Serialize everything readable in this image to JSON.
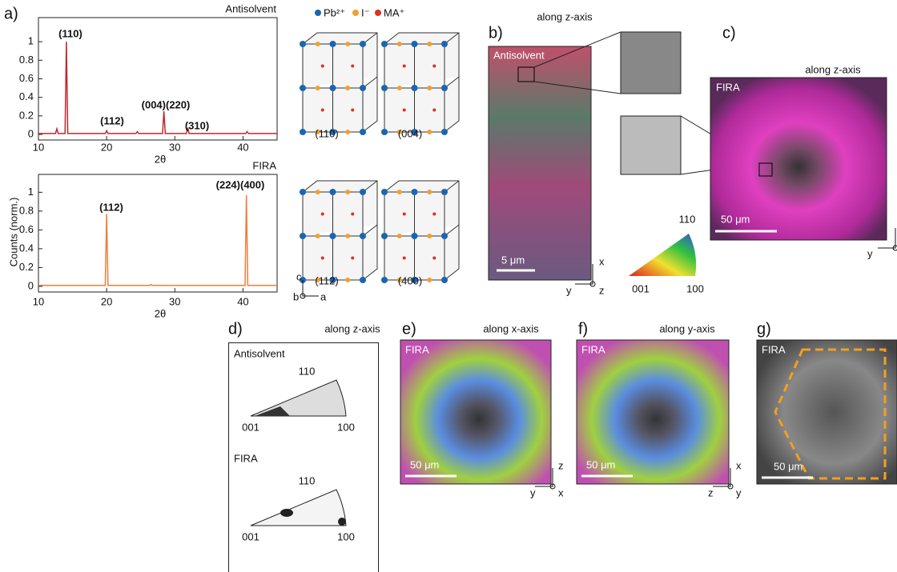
{
  "chart_data": [
    {
      "type": "line",
      "subtitle": "Antisolvent",
      "ylabel": "Counts (norm.)",
      "xlabel": "2θ",
      "x": [
        10,
        12.5,
        12.7,
        12.9,
        13.9,
        14.1,
        14.3,
        19.8,
        20,
        20.2,
        24.3,
        24.5,
        24.7,
        28.2,
        28.4,
        28.6,
        31.7,
        31.9,
        32.1,
        40.4,
        40.6,
        40.8,
        45
      ],
      "series": [
        {
          "color": "#c0282d",
          "values": [
            0.01,
            0.01,
            0.06,
            0.01,
            0.01,
            1.0,
            0.01,
            0.01,
            0.04,
            0.01,
            0.01,
            0.03,
            0.01,
            0.01,
            0.25,
            0.01,
            0.01,
            0.07,
            0.01,
            0.01,
            0.03,
            0.01,
            0.01
          ]
        }
      ],
      "annotations": [
        "(110)",
        "(112)",
        "(004)(220)",
        "(310)"
      ],
      "xlim": [
        10,
        45
      ],
      "xticks": [
        10,
        20,
        30,
        40
      ],
      "ylim": [
        -0.06,
        1.26
      ],
      "yticks": [
        0,
        0.2,
        0.4,
        0.6,
        0.8,
        1
      ]
    },
    {
      "type": "line",
      "subtitle": "FIRA",
      "xlabel": "2θ",
      "x": [
        10,
        19.8,
        20,
        20.2,
        26.3,
        26.5,
        26.7,
        40.3,
        40.5,
        40.7,
        45
      ],
      "series": [
        {
          "color": "#f07d3b",
          "values": [
            0.01,
            0.01,
            0.77,
            0.01,
            0.01,
            0.02,
            0.01,
            0.01,
            0.97,
            0.01,
            0.01
          ]
        }
      ],
      "annotations": [
        "(112)",
        "(224)(400)"
      ],
      "xlim": [
        10,
        45
      ],
      "xticks": [
        10,
        20,
        30,
        40
      ],
      "ylim": [
        -0.06,
        1.19
      ],
      "yticks": [
        0,
        0.2,
        0.4,
        0.6,
        0.8,
        1
      ]
    }
  ],
  "figure": {
    "a": {
      "label": "a)",
      "legend": [
        "Pb²⁺",
        "I⁻",
        "MA⁺"
      ],
      "planes": [
        "(110)",
        "(004)",
        "(112)",
        "(400)"
      ],
      "axes": [
        "c",
        "b",
        "a"
      ]
    },
    "b": {
      "label": "b)",
      "direction": "along z-axis",
      "sample": "Antisolvent",
      "scale": "5 μm",
      "axes": [
        "x",
        "y",
        "z"
      ],
      "key": [
        "110",
        "001",
        "100"
      ]
    },
    "c": {
      "label": "c)",
      "direction": "along z-axis",
      "sample": "FIRA",
      "scale": "50 μm",
      "axes": [
        "y"
      ]
    },
    "d": {
      "label": "d)",
      "direction": "along z-axis",
      "samples": [
        {
          "name": "Antisolvent",
          "poles": [
            "110",
            "001",
            "100"
          ]
        },
        {
          "name": "FIRA",
          "poles": [
            "110",
            "001",
            "100"
          ]
        }
      ]
    },
    "e": {
      "label": "e)",
      "direction": "along x-axis",
      "sample": "FIRA",
      "scale": "50 μm",
      "axes": [
        "z",
        "y",
        "x"
      ]
    },
    "f": {
      "label": "f)",
      "direction": "along y-axis",
      "sample": "FIRA",
      "scale": "50 μm",
      "axes": [
        "x",
        "z",
        "y"
      ]
    },
    "g": {
      "label": "g)",
      "sample": "FIRA",
      "scale": "50 μm"
    }
  }
}
